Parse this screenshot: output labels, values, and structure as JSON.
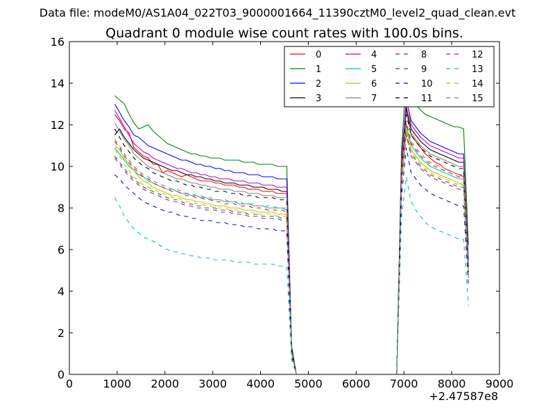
{
  "header": {
    "data_file": "Data file: modeM0/AS1A04_022T03_9000001664_11390cztM0_level2_quad_clean.evt"
  },
  "chart_data": {
    "type": "line",
    "title": "Quadrant 0 module wise count rates with 100.0s bins.",
    "xlabel": "",
    "ylabel": "",
    "x_offset_label": "+2.47587e8",
    "xlim": [
      0,
      9000
    ],
    "ylim": [
      0,
      16
    ],
    "x_ticks": [
      0,
      1000,
      2000,
      3000,
      4000,
      5000,
      6000,
      7000,
      8000,
      9000
    ],
    "y_ticks": [
      0,
      2,
      4,
      6,
      8,
      10,
      12,
      14,
      16
    ],
    "grid": false,
    "legend_position": "top-right",
    "x": [
      950,
      1050,
      1150,
      1250,
      1350,
      1450,
      1550,
      1650,
      1750,
      1850,
      1950,
      2050,
      2150,
      2250,
      2350,
      2450,
      2550,
      2650,
      2750,
      2850,
      2950,
      3050,
      3150,
      3250,
      3350,
      3450,
      3550,
      3650,
      3750,
      3850,
      3950,
      4050,
      4150,
      4250,
      4350,
      4450,
      4550,
      4650,
      4750,
      4850,
      6850,
      6950,
      7050,
      7150,
      7250,
      7350,
      7450,
      7550,
      7650,
      7750,
      7850,
      7950,
      8050,
      8150,
      8250,
      8350
    ],
    "series": [
      {
        "name": "0",
        "color": "#ff0000",
        "dash": "solid",
        "values": [
          12.5,
          12.2,
          11.8,
          11.6,
          10.9,
          10.7,
          10.5,
          10.4,
          10.1,
          10.1,
          9.7,
          9.8,
          9.7,
          9.6,
          9.5,
          9.6,
          9.5,
          9.4,
          9.3,
          9.3,
          9.3,
          9.2,
          9.2,
          9.1,
          9.1,
          9.1,
          9.0,
          9.0,
          8.9,
          8.9,
          8.9,
          8.8,
          8.8,
          8.8,
          8.7,
          8.7,
          8.7,
          1.2,
          0.0,
          0.0,
          0.0,
          9.9,
          12.9,
          11.5,
          11.2,
          10.9,
          10.6,
          10.4,
          10.2,
          10.1,
          9.9,
          9.8,
          9.7,
          9.6,
          9.5,
          5.2
        ]
      },
      {
        "name": "1",
        "color": "#008000",
        "dash": "solid",
        "values": [
          13.4,
          13.2,
          13.0,
          12.5,
          12.1,
          11.8,
          11.9,
          12.0,
          11.7,
          11.5,
          11.3,
          11.1,
          11.0,
          10.9,
          10.8,
          10.7,
          10.6,
          10.6,
          10.5,
          10.5,
          10.4,
          10.4,
          10.4,
          10.3,
          10.3,
          10.3,
          10.3,
          10.2,
          10.2,
          10.2,
          10.1,
          10.1,
          10.1,
          10.1,
          10.0,
          10.0,
          10.0,
          1.4,
          0.0,
          0.0,
          0.0,
          10.8,
          14.4,
          13.3,
          13.0,
          12.7,
          12.5,
          12.4,
          12.3,
          12.2,
          12.1,
          12.0,
          11.9,
          11.9,
          11.8,
          6.2
        ]
      },
      {
        "name": "2",
        "color": "#0000ff",
        "dash": "solid",
        "values": [
          13.0,
          12.6,
          12.2,
          11.9,
          11.5,
          11.4,
          11.2,
          11.0,
          10.9,
          10.8,
          10.7,
          10.6,
          10.5,
          10.4,
          10.3,
          10.3,
          10.2,
          10.1,
          10.1,
          10.0,
          10.0,
          9.9,
          9.9,
          9.8,
          9.8,
          9.7,
          9.7,
          9.7,
          9.6,
          9.6,
          9.6,
          9.5,
          9.5,
          9.5,
          9.4,
          9.4,
          9.4,
          1.3,
          0.0,
          0.0,
          0.0,
          10.4,
          13.2,
          12.2,
          11.9,
          11.6,
          11.4,
          11.2,
          11.1,
          11.0,
          10.9,
          10.8,
          10.7,
          10.6,
          10.6,
          5.5
        ]
      },
      {
        "name": "3",
        "color": "#000000",
        "dash": "solid",
        "values": [
          11.5,
          11.8,
          11.4,
          11.1,
          10.8,
          10.6,
          10.4,
          10.3,
          10.2,
          10.1,
          10.0,
          9.9,
          9.8,
          9.8,
          9.7,
          9.6,
          9.6,
          9.5,
          9.5,
          9.4,
          9.4,
          9.3,
          9.3,
          9.2,
          9.2,
          9.2,
          9.1,
          9.1,
          9.1,
          9.0,
          9.0,
          9.0,
          8.9,
          8.9,
          8.9,
          8.8,
          8.8,
          1.2,
          0.0,
          0.0,
          0.0,
          10.1,
          12.8,
          11.8,
          11.5,
          11.2,
          11.0,
          10.8,
          10.7,
          10.6,
          10.5,
          10.4,
          10.3,
          10.2,
          10.2,
          5.3
        ]
      },
      {
        "name": "4",
        "color": "#bf00bf",
        "dash": "solid",
        "values": [
          12.7,
          12.3,
          11.9,
          11.5,
          11.1,
          10.9,
          10.7,
          10.6,
          10.4,
          10.3,
          10.2,
          10.1,
          10.0,
          9.9,
          9.9,
          9.8,
          9.7,
          9.7,
          9.6,
          9.6,
          9.5,
          9.5,
          9.4,
          9.4,
          9.4,
          9.3,
          9.3,
          9.3,
          9.2,
          9.2,
          9.2,
          9.1,
          9.1,
          9.1,
          9.0,
          9.0,
          9.0,
          1.2,
          0.0,
          0.0,
          0.0,
          10.2,
          13.3,
          12.0,
          11.7,
          11.4,
          11.2,
          11.0,
          10.9,
          10.8,
          10.7,
          10.6,
          10.5,
          10.4,
          10.4,
          5.4
        ]
      },
      {
        "name": "5",
        "color": "#00bfbf",
        "dash": "solid",
        "values": [
          10.9,
          10.6,
          10.3,
          10.0,
          9.8,
          9.6,
          9.5,
          9.3,
          9.2,
          9.1,
          9.0,
          8.9,
          8.9,
          8.8,
          8.7,
          8.7,
          8.6,
          8.6,
          8.5,
          8.5,
          8.4,
          8.4,
          8.4,
          8.3,
          8.3,
          8.3,
          8.2,
          8.2,
          8.2,
          8.1,
          8.1,
          8.1,
          8.0,
          8.0,
          8.0,
          8.0,
          7.9,
          1.1,
          0.0,
          0.0,
          0.0,
          9.5,
          12.0,
          11.0,
          10.7,
          10.4,
          10.2,
          10.0,
          9.9,
          9.8,
          9.7,
          9.6,
          9.5,
          9.4,
          9.4,
          4.9
        ]
      },
      {
        "name": "6",
        "color": "#bfbf00",
        "dash": "solid",
        "values": [
          11.0,
          10.8,
          10.4,
          10.1,
          9.8,
          9.5,
          9.3,
          9.2,
          9.0,
          8.9,
          8.8,
          8.7,
          8.6,
          8.6,
          8.5,
          8.4,
          8.4,
          8.3,
          8.3,
          8.2,
          8.2,
          8.1,
          8.1,
          8.1,
          8.0,
          8.0,
          8.0,
          7.9,
          7.9,
          7.9,
          7.8,
          7.8,
          7.8,
          7.8,
          7.7,
          7.7,
          7.7,
          1.1,
          0.0,
          0.0,
          0.0,
          9.4,
          11.8,
          10.8,
          10.5,
          10.2,
          10.0,
          9.8,
          9.7,
          9.6,
          9.5,
          9.4,
          9.3,
          9.2,
          9.1,
          4.8
        ]
      },
      {
        "name": "7",
        "color": "#808080",
        "dash": "solid",
        "values": [
          12.1,
          11.7,
          11.3,
          11.0,
          10.6,
          10.4,
          10.2,
          10.0,
          9.9,
          9.8,
          9.7,
          9.6,
          9.5,
          9.4,
          9.4,
          9.3,
          9.2,
          9.2,
          9.1,
          9.1,
          9.0,
          9.0,
          8.9,
          8.9,
          8.9,
          8.8,
          8.8,
          8.8,
          8.7,
          8.7,
          8.7,
          8.6,
          8.6,
          8.6,
          8.5,
          8.5,
          8.5,
          1.2,
          0.0,
          0.0,
          0.0,
          10.0,
          12.6,
          11.6,
          11.3,
          11.0,
          10.8,
          10.6,
          10.5,
          10.4,
          10.3,
          10.2,
          10.1,
          10.0,
          10.0,
          5.2
        ]
      },
      {
        "name": "8",
        "color": "#ff0000",
        "dash": "dashed",
        "values": [
          11.2,
          10.9,
          10.5,
          10.2,
          9.9,
          9.7,
          9.5,
          9.4,
          9.2,
          9.1,
          9.0,
          8.9,
          8.8,
          8.8,
          8.7,
          8.6,
          8.6,
          8.5,
          8.5,
          8.4,
          8.4,
          8.3,
          8.3,
          8.2,
          8.2,
          8.2,
          8.1,
          8.1,
          8.1,
          8.0,
          8.0,
          8.0,
          7.9,
          7.9,
          7.9,
          7.9,
          7.8,
          1.1,
          0.0,
          0.0,
          0.0,
          9.6,
          12.1,
          11.1,
          10.8,
          10.5,
          10.3,
          10.1,
          10.0,
          9.9,
          9.8,
          9.7,
          9.6,
          9.5,
          9.4,
          4.9
        ]
      },
      {
        "name": "9",
        "color": "#008000",
        "dash": "dashed",
        "values": [
          10.5,
          10.2,
          9.9,
          9.6,
          9.4,
          9.2,
          9.0,
          8.9,
          8.8,
          8.7,
          8.6,
          8.5,
          8.4,
          8.4,
          8.3,
          8.2,
          8.2,
          8.1,
          8.1,
          8.0,
          8.0,
          8.0,
          7.9,
          7.9,
          7.9,
          7.8,
          7.8,
          7.8,
          7.7,
          7.7,
          7.7,
          7.6,
          7.6,
          7.6,
          7.6,
          7.5,
          7.5,
          1.0,
          0.0,
          0.0,
          0.0,
          9.2,
          11.6,
          10.6,
          10.3,
          10.0,
          9.8,
          9.6,
          9.5,
          9.4,
          9.3,
          9.2,
          9.1,
          9.0,
          9.0,
          4.7
        ]
      },
      {
        "name": "10",
        "color": "#0000ff",
        "dash": "dashed",
        "values": [
          9.6,
          9.4,
          9.1,
          8.9,
          8.7,
          8.5,
          8.3,
          8.2,
          8.1,
          8.0,
          7.9,
          7.8,
          7.8,
          7.7,
          7.6,
          7.6,
          7.5,
          7.5,
          7.4,
          7.4,
          7.4,
          7.3,
          7.3,
          7.3,
          7.2,
          7.2,
          7.2,
          7.1,
          7.1,
          7.1,
          7.0,
          7.0,
          7.0,
          7.0,
          6.9,
          6.9,
          6.9,
          0.9,
          0.0,
          0.0,
          0.0,
          8.6,
          10.9,
          9.7,
          9.4,
          9.1,
          8.9,
          8.7,
          8.6,
          8.5,
          8.4,
          8.3,
          8.2,
          8.1,
          8.1,
          4.3
        ]
      },
      {
        "name": "11",
        "color": "#000000",
        "dash": "dashed",
        "values": [
          11.8,
          11.4,
          11.0,
          10.7,
          10.4,
          10.2,
          10.0,
          9.9,
          9.7,
          9.6,
          9.5,
          9.4,
          9.3,
          9.3,
          9.2,
          9.1,
          9.1,
          9.0,
          9.0,
          8.9,
          8.9,
          8.8,
          8.8,
          8.8,
          8.7,
          8.7,
          8.7,
          8.6,
          8.6,
          8.6,
          8.5,
          8.5,
          8.5,
          8.5,
          8.4,
          8.4,
          8.4,
          1.2,
          0.0,
          0.0,
          0.0,
          9.9,
          12.5,
          11.5,
          11.2,
          10.9,
          10.7,
          10.5,
          10.4,
          10.3,
          10.2,
          10.1,
          10.0,
          9.9,
          9.9,
          5.1
        ]
      },
      {
        "name": "12",
        "color": "#bf00bf",
        "dash": "dashed",
        "values": [
          10.4,
          10.1,
          9.8,
          9.5,
          9.3,
          9.1,
          8.9,
          8.8,
          8.7,
          8.6,
          8.5,
          8.4,
          8.3,
          8.3,
          8.2,
          8.1,
          8.1,
          8.0,
          8.0,
          7.9,
          7.9,
          7.9,
          7.8,
          7.8,
          7.8,
          7.7,
          7.7,
          7.7,
          7.6,
          7.6,
          7.6,
          7.5,
          7.5,
          7.5,
          7.5,
          7.4,
          7.4,
          1.0,
          0.0,
          0.0,
          0.0,
          9.1,
          11.5,
          10.5,
          10.2,
          9.9,
          9.7,
          9.5,
          9.4,
          9.3,
          9.2,
          9.1,
          9.0,
          8.9,
          8.9,
          4.6
        ]
      },
      {
        "name": "13",
        "color": "#00bfbf",
        "dash": "dashed",
        "values": [
          8.5,
          8.1,
          7.6,
          7.3,
          7.0,
          6.8,
          6.6,
          6.5,
          6.4,
          6.3,
          6.1,
          6.0,
          5.9,
          5.9,
          5.8,
          5.8,
          5.7,
          5.7,
          5.6,
          5.6,
          5.6,
          5.5,
          5.5,
          5.5,
          5.5,
          5.4,
          5.4,
          5.4,
          5.4,
          5.3,
          5.3,
          5.3,
          5.3,
          5.3,
          5.2,
          5.2,
          5.2,
          0.7,
          0.0,
          0.0,
          0.0,
          7.6,
          9.5,
          8.3,
          7.9,
          7.6,
          7.3,
          7.1,
          7.0,
          6.9,
          6.8,
          6.7,
          6.6,
          6.5,
          6.5,
          3.3
        ]
      },
      {
        "name": "14",
        "color": "#bfbf00",
        "dash": "dashed",
        "values": [
          10.8,
          10.5,
          10.1,
          9.8,
          9.5,
          9.3,
          9.1,
          9.0,
          8.9,
          8.8,
          8.7,
          8.6,
          8.5,
          8.5,
          8.4,
          8.3,
          8.3,
          8.2,
          8.2,
          8.1,
          8.1,
          8.0,
          8.0,
          8.0,
          7.9,
          7.9,
          7.9,
          7.8,
          7.8,
          7.8,
          7.7,
          7.7,
          7.7,
          7.7,
          7.6,
          7.6,
          7.6,
          1.0,
          0.0,
          0.0,
          0.0,
          9.3,
          11.7,
          10.7,
          10.4,
          10.1,
          9.9,
          9.7,
          9.6,
          9.5,
          9.4,
          9.3,
          9.2,
          9.1,
          9.1,
          4.7
        ]
      },
      {
        "name": "15",
        "color": "#808080",
        "dash": "dashed",
        "values": [
          11.3,
          11.0,
          10.6,
          10.3,
          10.0,
          9.8,
          9.6,
          9.5,
          9.3,
          9.2,
          9.1,
          9.0,
          8.9,
          8.9,
          8.8,
          8.7,
          8.7,
          8.6,
          8.6,
          8.5,
          8.5,
          8.4,
          8.4,
          8.4,
          8.3,
          8.3,
          8.3,
          8.2,
          8.2,
          8.2,
          8.1,
          8.1,
          8.1,
          8.1,
          8.0,
          8.0,
          8.0,
          1.1,
          0.0,
          0.0,
          0.0,
          9.7,
          12.2,
          11.2,
          10.9,
          10.6,
          10.4,
          10.2,
          10.1,
          10.0,
          9.9,
          9.8,
          9.7,
          9.6,
          9.6,
          5.0
        ]
      }
    ]
  }
}
